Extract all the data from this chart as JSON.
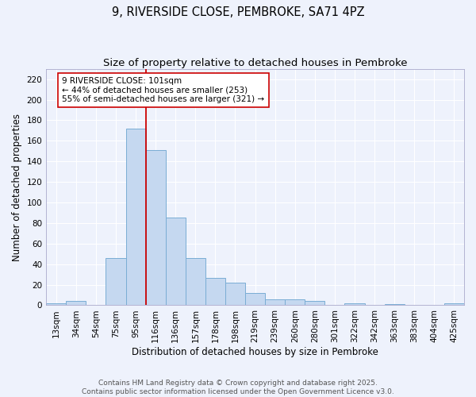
{
  "title_line1": "9, RIVERSIDE CLOSE, PEMBROKE, SA71 4PZ",
  "title_line2": "Size of property relative to detached houses in Pembroke",
  "xlabel": "Distribution of detached houses by size in Pembroke",
  "ylabel": "Number of detached properties",
  "categories": [
    "13sqm",
    "34sqm",
    "54sqm",
    "75sqm",
    "95sqm",
    "116sqm",
    "136sqm",
    "157sqm",
    "178sqm",
    "198sqm",
    "219sqm",
    "239sqm",
    "260sqm",
    "280sqm",
    "301sqm",
    "322sqm",
    "342sqm",
    "363sqm",
    "383sqm",
    "404sqm",
    "425sqm"
  ],
  "values": [
    2,
    4,
    0,
    46,
    172,
    151,
    85,
    46,
    27,
    22,
    12,
    6,
    6,
    4,
    0,
    2,
    0,
    1,
    0,
    0,
    2
  ],
  "bar_color": "#c5d8f0",
  "bar_edge_color": "#7aadd4",
  "background_color": "#eef2fc",
  "grid_color": "#ffffff",
  "ylim": [
    0,
    230
  ],
  "yticks": [
    0,
    20,
    40,
    60,
    80,
    100,
    120,
    140,
    160,
    180,
    200,
    220
  ],
  "property_bin_index": 4.5,
  "vline_color": "#cc0000",
  "annotation_text_line1": "9 RIVERSIDE CLOSE: 101sqm",
  "annotation_text_line2": "← 44% of detached houses are smaller (253)",
  "annotation_text_line3": "55% of semi-detached houses are larger (321) →",
  "annotation_box_color": "#ffffff",
  "annotation_border_color": "#cc0000",
  "footnote_line1": "Contains HM Land Registry data © Crown copyright and database right 2025.",
  "footnote_line2": "Contains public sector information licensed under the Open Government Licence v3.0.",
  "title_fontsize": 10.5,
  "subtitle_fontsize": 9.5,
  "axis_label_fontsize": 8.5,
  "tick_fontsize": 7.5,
  "annotation_fontsize": 7.5,
  "footnote_fontsize": 6.5
}
